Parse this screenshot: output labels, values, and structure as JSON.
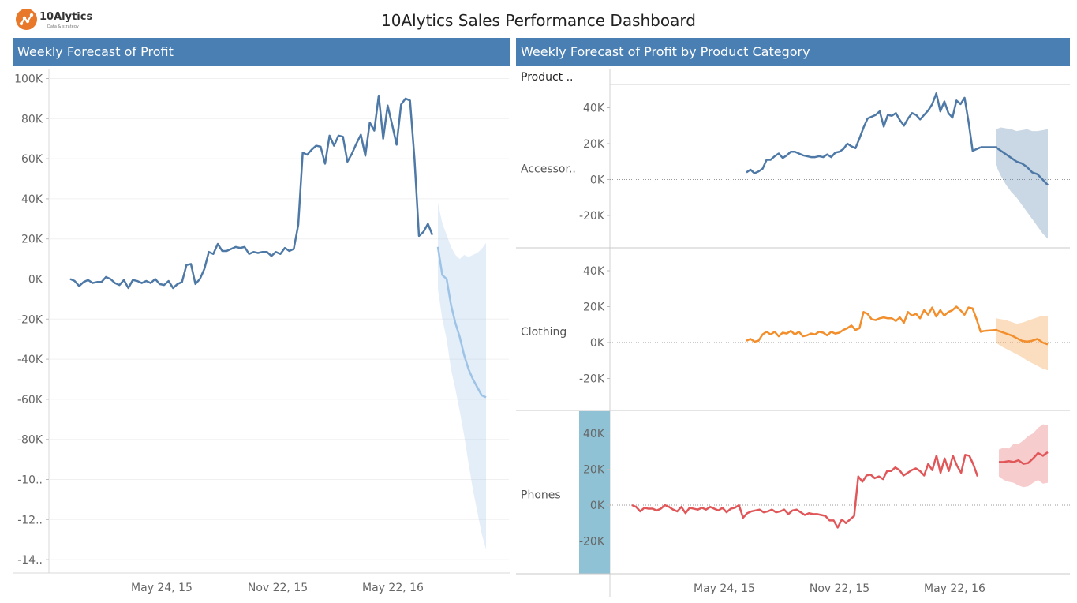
{
  "header": {
    "logo_text": "10Alytics",
    "logo_sub": "Data & strategy",
    "title": "10Alytics Sales Performance Dashboard"
  },
  "panels": {
    "left_title": "Weekly Forecast of Profit",
    "right_title": "Weekly Forecast of Profit by Product Category",
    "row_header": "Product .."
  },
  "colors": {
    "header_bg": "#4a7fb3",
    "left_actual": "#4e79a7",
    "left_forecast": "#9dc3e6",
    "accessories": "#4e79a7",
    "clothing": "#f28e2b",
    "phones": "#e15759",
    "phones_highlight": "#8fc2d4"
  },
  "chart_data": [
    {
      "type": "line",
      "title": "Weekly Forecast of Profit",
      "y_ticks": [
        "100K",
        "80K",
        "60K",
        "40K",
        "20K",
        "0K",
        "-20K",
        "-40K",
        "-60K",
        "-80K",
        "-10..",
        "-12..",
        "-14.."
      ],
      "x_ticks": [
        "May 24, 15",
        "Nov 22, 15",
        "May 22, 16"
      ],
      "ylim": [
        -140000,
        100000
      ],
      "series": [
        {
          "kind": "actual",
          "values": [
            0,
            -1000,
            -3500,
            -1500,
            -500,
            -2000,
            -1500,
            -1500,
            1000,
            0,
            -2000,
            -3000,
            -500,
            -4500,
            -500,
            -1000,
            -2000,
            -1000,
            -2000,
            0,
            -2500,
            -3000,
            -1000,
            -4500,
            -2500,
            -1500,
            7000,
            7500,
            -2500,
            0,
            5000,
            13500,
            12500,
            17500,
            14000,
            14000,
            15000,
            16000,
            15500,
            16000,
            12500,
            13500,
            13000,
            13500,
            13500,
            11500,
            13500,
            12500,
            15500,
            14000,
            15000,
            27000,
            63000,
            62000,
            64500,
            66500,
            66000,
            57500,
            71500,
            66500,
            71500,
            71000,
            58500,
            62500,
            67500,
            72000,
            61500,
            78000,
            74000,
            91500,
            70000,
            86500,
            77000,
            67000,
            87000,
            90000,
            89000,
            60000,
            21500,
            23500,
            27500,
            22000
          ]
        },
        {
          "kind": "forecast",
          "values": [
            16000,
            2000,
            0,
            -13000,
            -22000,
            -29000,
            -38000,
            -45000,
            -50000,
            -54000,
            -58000,
            -59000
          ],
          "upper": [
            38000,
            28000,
            22000,
            16000,
            12000,
            10000,
            12000,
            11000,
            12000,
            13000,
            15000,
            18000
          ],
          "lower": [
            -5000,
            -20000,
            -30000,
            -45000,
            -55000,
            -66000,
            -78000,
            -92000,
            -105000,
            -116000,
            -127000,
            -135000
          ]
        }
      ]
    },
    {
      "type": "line",
      "title": "Accessor..",
      "y_ticks": [
        "40K",
        "20K",
        "0K",
        "-20K"
      ],
      "ylim": [
        -37000,
        50000
      ],
      "actual": [
        4000,
        5500,
        3500,
        4500,
        6000,
        11000,
        11000,
        13000,
        14500,
        12000,
        13500,
        15500,
        15500,
        14500,
        13500,
        13000,
        12500,
        12500,
        13000,
        12500,
        14000,
        12500,
        15000,
        15500,
        17000,
        20000,
        18500,
        17500,
        23000,
        29000,
        34000,
        35000,
        36000,
        38000,
        29500,
        36000,
        35500,
        37000,
        33000,
        30000,
        34000,
        37000,
        36000,
        33500,
        36000,
        38500,
        42000,
        48000,
        38000,
        43500,
        37000,
        34500,
        44000,
        42000,
        45500,
        32000,
        16000,
        17000,
        18000
      ],
      "forecast": [
        18000,
        16000,
        14000,
        12000,
        10000,
        9000,
        7000,
        4000,
        3000,
        0,
        -3000
      ],
      "upper": [
        28000,
        29000,
        28500,
        28000,
        27000,
        27500,
        28000,
        27000,
        27000,
        27500,
        28000
      ],
      "lower": [
        8000,
        2000,
        -3000,
        -7000,
        -10000,
        -14000,
        -18000,
        -22000,
        -26000,
        -30000,
        -33000
      ]
    },
    {
      "type": "line",
      "title": "Clothing",
      "y_ticks": [
        "40K",
        "20K",
        "0K",
        "-20K"
      ],
      "ylim": [
        -37000,
        50000
      ],
      "actual": [
        1000,
        2000,
        500,
        1000,
        4500,
        6000,
        4500,
        6000,
        3500,
        5500,
        5000,
        6500,
        4500,
        6000,
        3500,
        4000,
        5000,
        4500,
        6000,
        5500,
        4000,
        6000,
        5000,
        5500,
        7000,
        8000,
        9500,
        7000,
        8000,
        17000,
        16000,
        13000,
        12500,
        13500,
        14000,
        13500,
        13500,
        12000,
        14000,
        11000,
        17000,
        15000,
        16000,
        13500,
        18000,
        15500,
        19500,
        14500,
        18000,
        15000,
        17000,
        18000,
        20000,
        18000,
        15500,
        19500,
        19000,
        13000,
        6000,
        6500
      ],
      "forecast": [
        7000,
        6000,
        5000,
        4000,
        2500,
        1000,
        500,
        1000,
        2000,
        0,
        -1000
      ],
      "upper": [
        13500,
        13000,
        12500,
        11500,
        10500,
        11000,
        12000,
        13000,
        14000,
        15000,
        14500
      ],
      "lower": [
        0,
        -2000,
        -3500,
        -5000,
        -6500,
        -8000,
        -10000,
        -11500,
        -13000,
        -14500,
        -15500
      ]
    },
    {
      "type": "line",
      "title": "Phones",
      "y_ticks": [
        "40K",
        "20K",
        "0K",
        "-20K"
      ],
      "ylim": [
        -37000,
        50000
      ],
      "actual": [
        0,
        -1000,
        -3500,
        -1500,
        -2000,
        -2000,
        -3000,
        -2000,
        0,
        -1000,
        -2500,
        -3500,
        -1000,
        -4500,
        -1500,
        -2000,
        -2500,
        -1500,
        -2500,
        -1000,
        -2000,
        -3000,
        -1500,
        -4000,
        -2000,
        -1500,
        0,
        -7000,
        -4500,
        -3500,
        -3000,
        -2500,
        -4000,
        -3500,
        -2500,
        -4000,
        -3500,
        -2500,
        -5000,
        -3000,
        -2500,
        -4000,
        -5500,
        -4500,
        -5000,
        -5000,
        -5500,
        -6000,
        -8500,
        -8500,
        -12500,
        -8000,
        -10000,
        -8000,
        -6000,
        16000,
        13000,
        16500,
        17000,
        15000,
        16000,
        14500,
        19000,
        19000,
        21000,
        19500,
        16500,
        18000,
        19500,
        20500,
        19000,
        16500,
        23000,
        19500,
        27500,
        18000,
        26000,
        19000,
        27500,
        22000,
        18000,
        28000,
        27500,
        22500,
        16000
      ],
      "forecast": [
        24000,
        24000,
        24500,
        24000,
        25000,
        23000,
        23500,
        26000,
        29000,
        27500,
        29500
      ],
      "upper": [
        31000,
        32000,
        31500,
        34000,
        34000,
        36000,
        38500,
        40000,
        43000,
        45000,
        44500
      ],
      "lower": [
        16000,
        14000,
        13000,
        12500,
        11000,
        10000,
        10500,
        12500,
        14000,
        12000,
        12500
      ]
    }
  ]
}
